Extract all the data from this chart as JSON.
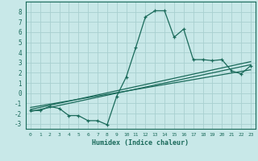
{
  "xlabel": "Humidex (Indice chaleur)",
  "bg_color": "#c8e8e8",
  "grid_color": "#a8d0d0",
  "line_color": "#1a6a5a",
  "xlim": [
    -0.5,
    23.5
  ],
  "ylim": [
    -3.5,
    9.0
  ],
  "xticks": [
    0,
    1,
    2,
    3,
    4,
    5,
    6,
    7,
    8,
    9,
    10,
    11,
    12,
    13,
    14,
    15,
    16,
    17,
    18,
    19,
    20,
    21,
    22,
    23
  ],
  "yticks": [
    -3,
    -2,
    -1,
    0,
    1,
    2,
    3,
    4,
    5,
    6,
    7,
    8
  ],
  "main_x": [
    0,
    1,
    2,
    3,
    4,
    5,
    6,
    7,
    8,
    9,
    10,
    11,
    12,
    13,
    14,
    15,
    16,
    17,
    18,
    19,
    20,
    21,
    22,
    23
  ],
  "main_y": [
    -1.7,
    -1.7,
    -1.3,
    -1.5,
    -2.2,
    -2.2,
    -2.7,
    -2.7,
    -3.1,
    -0.3,
    1.6,
    4.5,
    7.5,
    8.1,
    8.1,
    5.5,
    6.3,
    3.3,
    3.3,
    3.2,
    3.3,
    2.2,
    1.9,
    2.7
  ],
  "line1_x": [
    0,
    23
  ],
  "line1_y": [
    -1.8,
    2.8
  ],
  "line2_x": [
    0,
    23
  ],
  "line2_y": [
    -1.6,
    3.1
  ],
  "line3_x": [
    0,
    23
  ],
  "line3_y": [
    -1.4,
    2.3
  ]
}
